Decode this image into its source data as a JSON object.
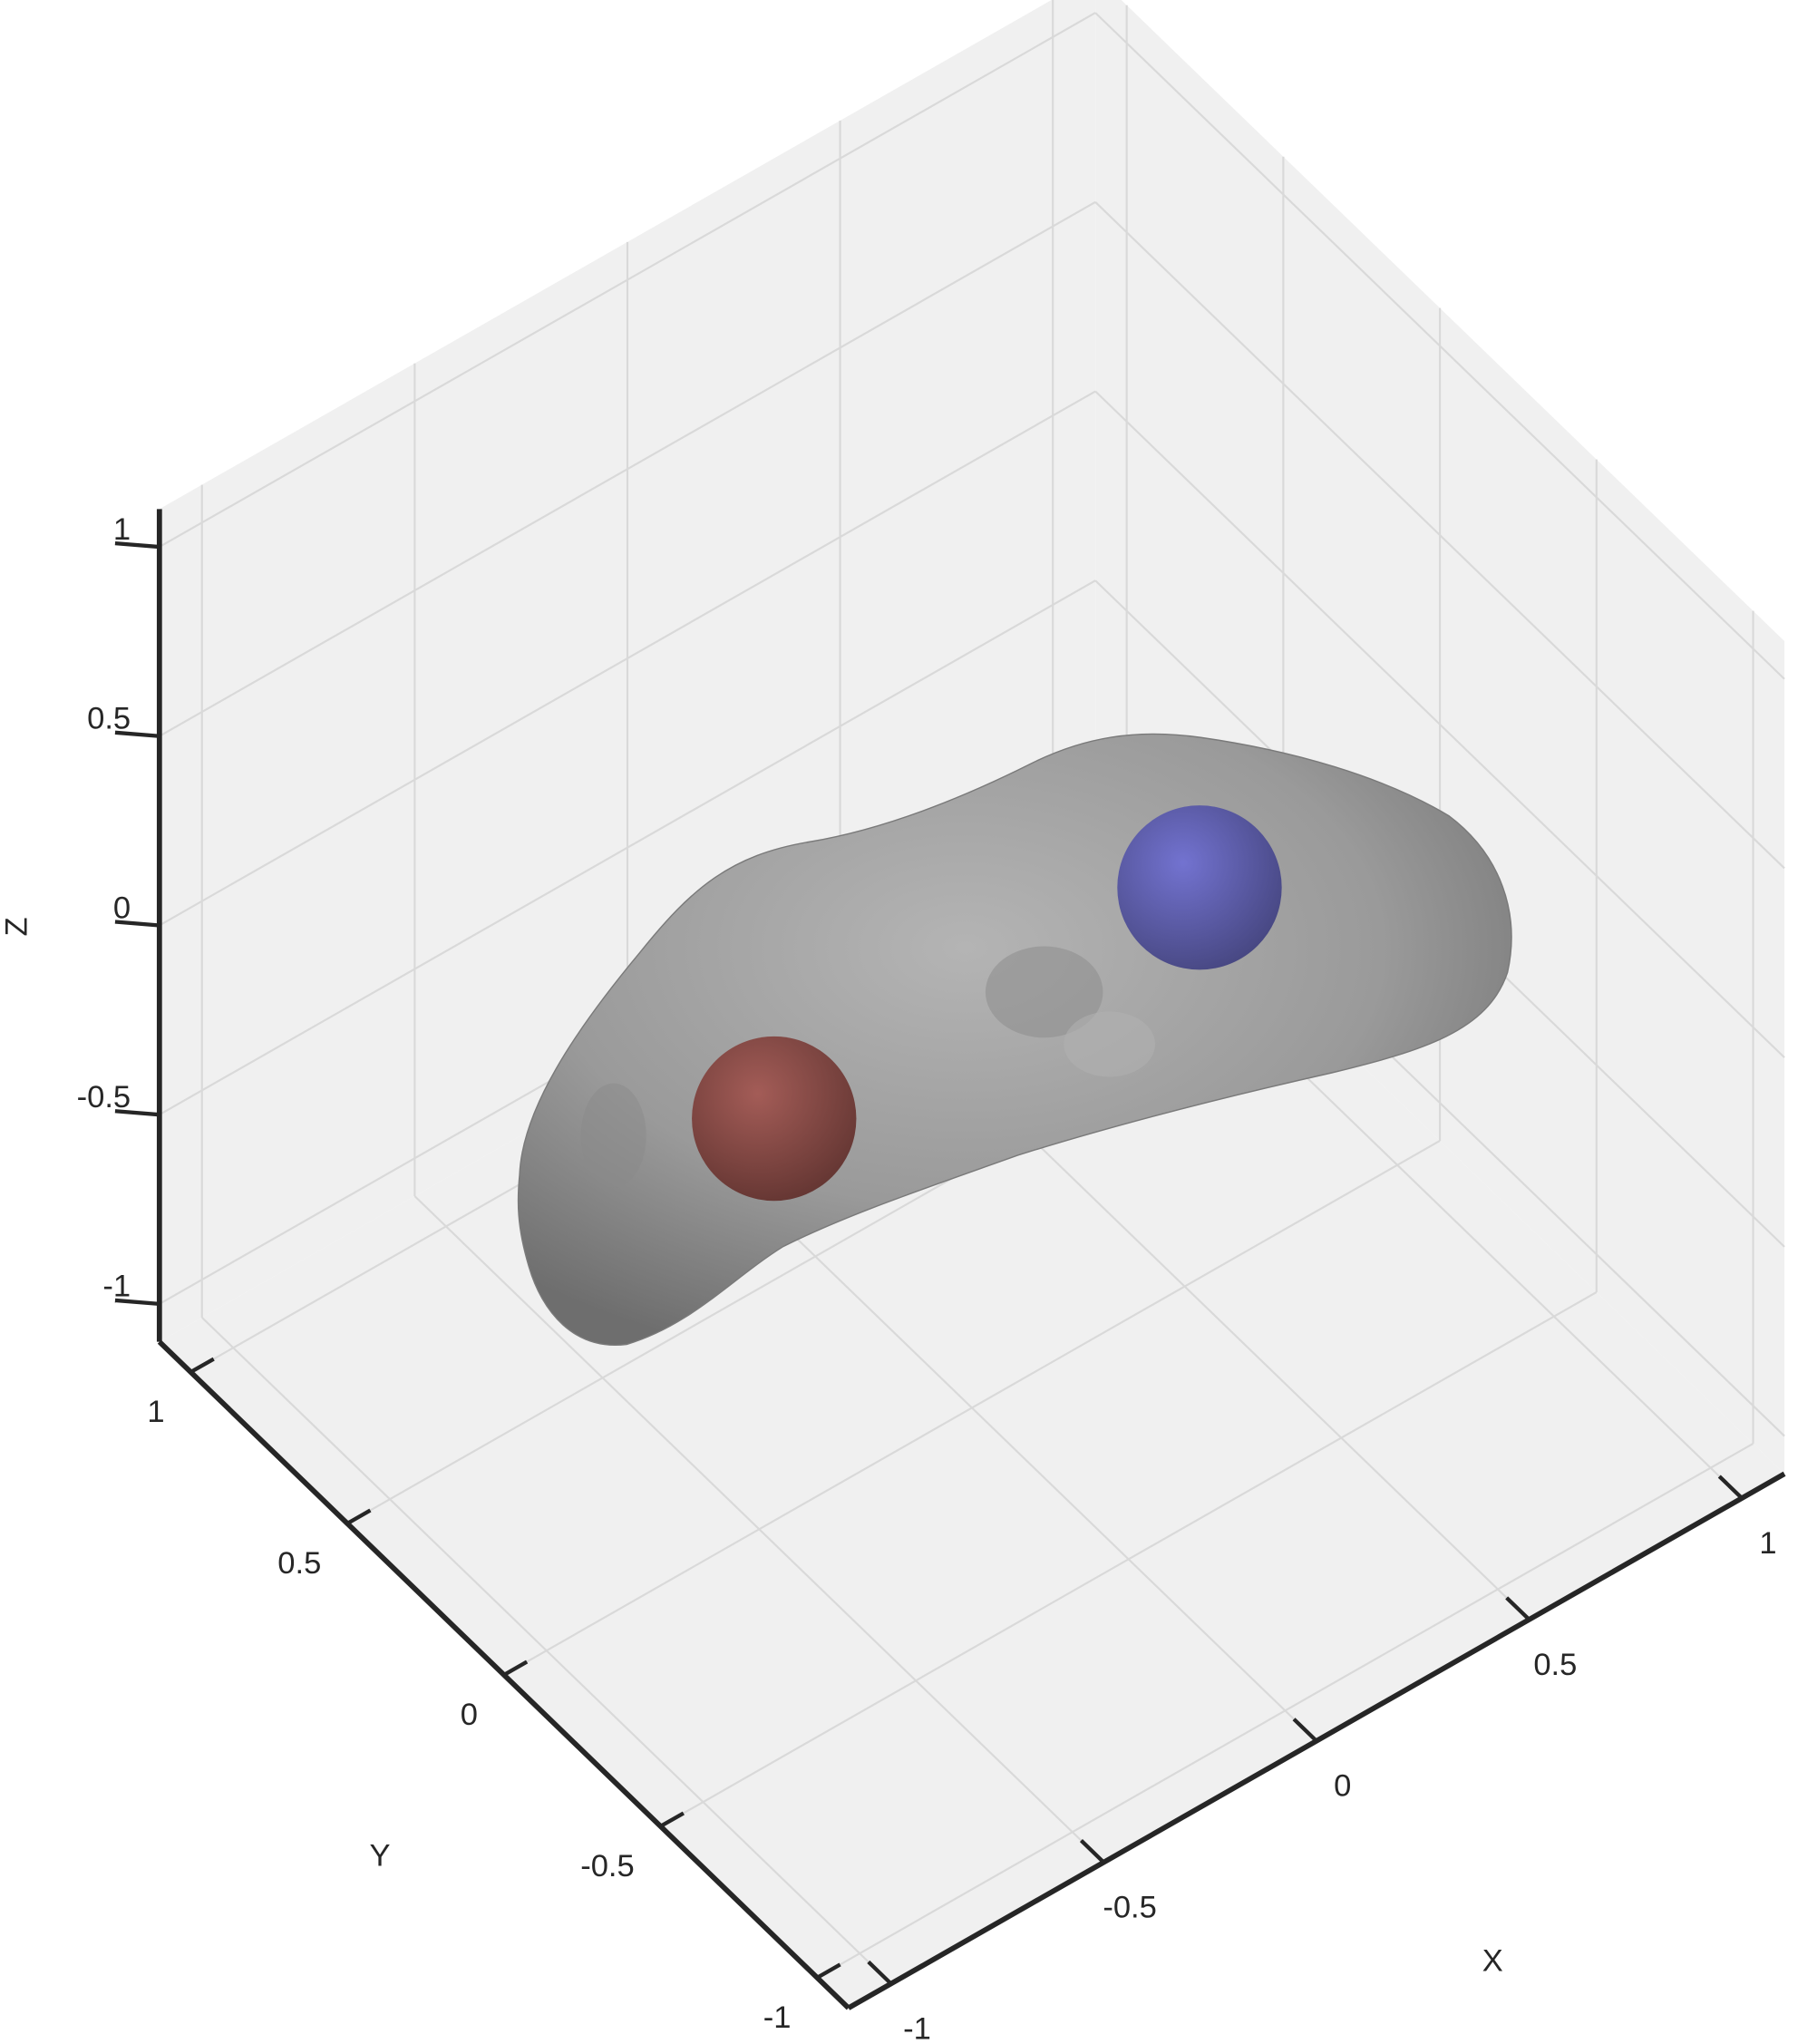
{
  "chart_data": {
    "type": "surface3d",
    "xlabel": "X",
    "ylabel": "Y",
    "zlabel": "Z",
    "xlim": [
      -1.1,
      1.1
    ],
    "ylim": [
      -1.1,
      1.1
    ],
    "zlim": [
      -1.1,
      1.1
    ],
    "xticks": [
      -1,
      -0.5,
      0,
      0.5,
      1
    ],
    "yticks": [
      -1,
      -0.5,
      0,
      0.5,
      1
    ],
    "zticks": [
      -1,
      -0.5,
      0,
      0.5,
      1
    ],
    "grid": true
  }
}
